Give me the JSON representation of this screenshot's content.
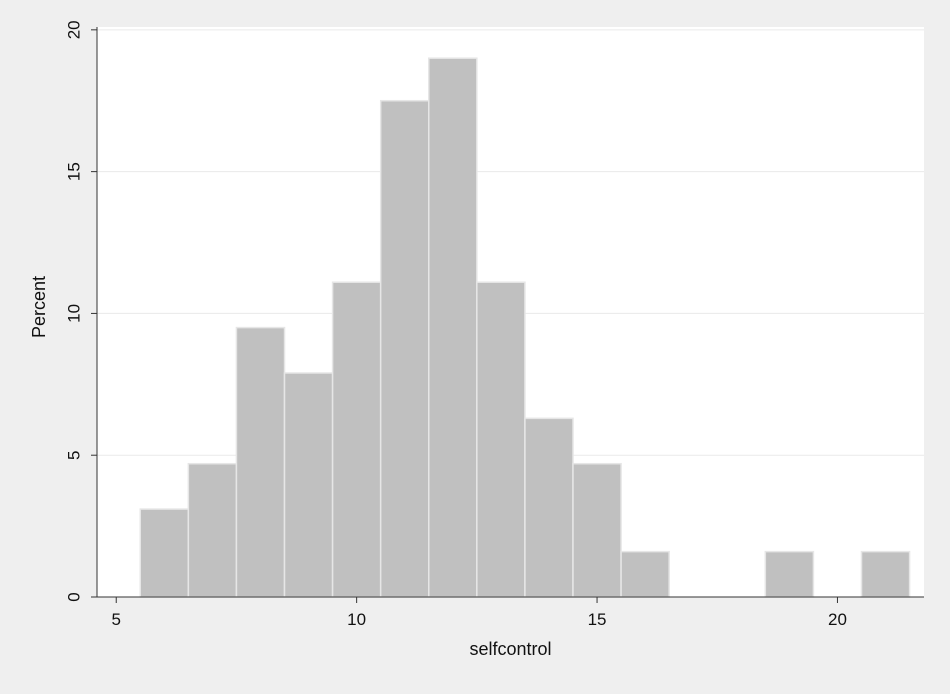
{
  "colors": {
    "outer_background": "#efefef",
    "plot_background": "#ffffff",
    "bar_fill": "#c0c0c0",
    "bar_outline": "#e6e6e6",
    "gridline": "#eaeaea",
    "axis": "#333333",
    "text": "#111111"
  },
  "chart_data": {
    "type": "bar",
    "title": "",
    "xlabel": "selfcontrol",
    "ylabel": "Percent",
    "xlim": [
      4.6,
      21.8
    ],
    "ylim": [
      0,
      20.1
    ],
    "x_ticks": [
      5,
      10,
      15,
      20
    ],
    "y_ticks": [
      0,
      5,
      10,
      15,
      20
    ],
    "grid": "horizontal",
    "bin_width": 1,
    "bins": [
      {
        "x0": 5.5,
        "x1": 6.5,
        "value": 3.1
      },
      {
        "x0": 6.5,
        "x1": 7.5,
        "value": 4.7
      },
      {
        "x0": 7.5,
        "x1": 8.5,
        "value": 9.5
      },
      {
        "x0": 8.5,
        "x1": 9.5,
        "value": 7.9
      },
      {
        "x0": 9.5,
        "x1": 10.5,
        "value": 11.1
      },
      {
        "x0": 10.5,
        "x1": 11.5,
        "value": 17.5
      },
      {
        "x0": 11.5,
        "x1": 12.5,
        "value": 19.0
      },
      {
        "x0": 12.5,
        "x1": 13.5,
        "value": 11.1
      },
      {
        "x0": 13.5,
        "x1": 14.5,
        "value": 6.3
      },
      {
        "x0": 14.5,
        "x1": 15.5,
        "value": 4.7
      },
      {
        "x0": 15.5,
        "x1": 16.5,
        "value": 1.6
      },
      {
        "x0": 18.5,
        "x1": 19.5,
        "value": 1.6
      },
      {
        "x0": 20.5,
        "x1": 21.5,
        "value": 1.6
      }
    ]
  }
}
